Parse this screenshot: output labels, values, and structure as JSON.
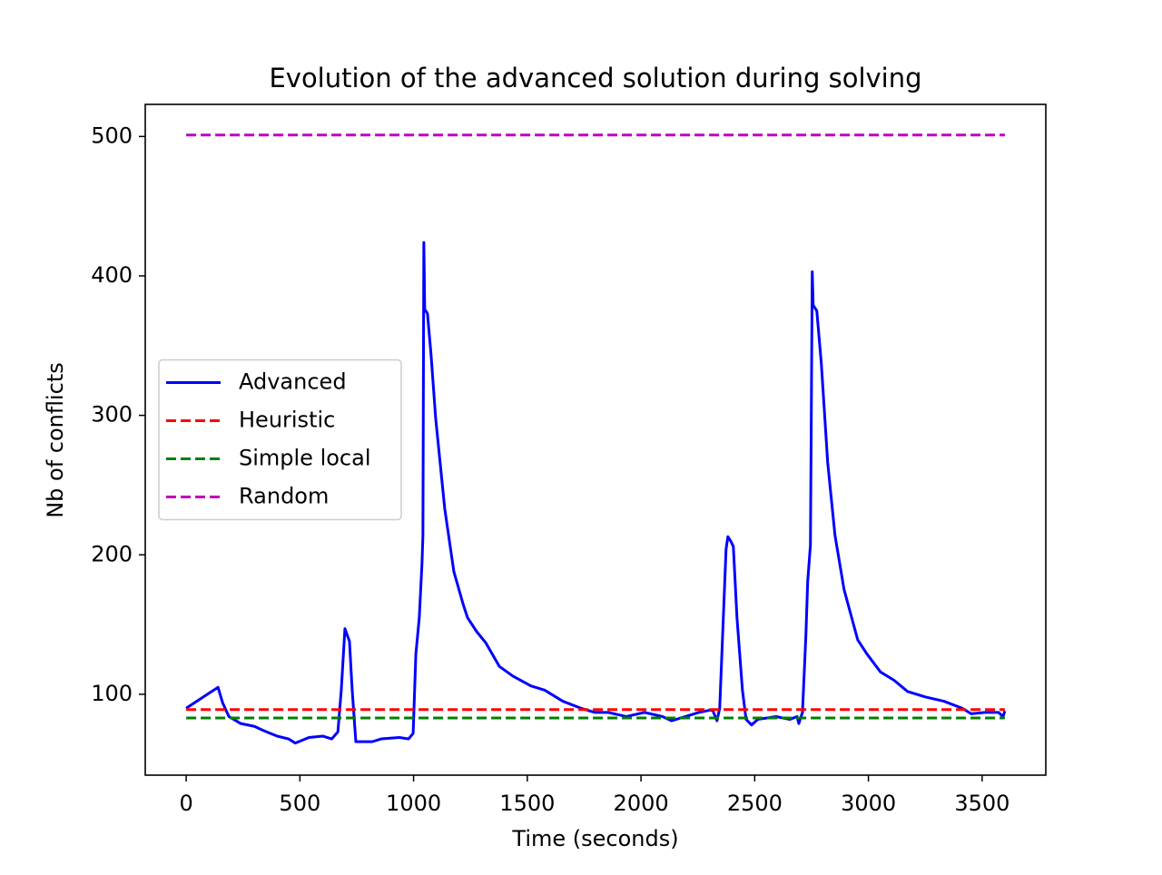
{
  "chart_data": {
    "type": "line",
    "title": "Evolution of the advanced solution during solving",
    "x_label": "Time (seconds)",
    "y_label": "Nb of conflicts",
    "xlim": [
      -180,
      3780
    ],
    "ylim": [
      42,
      523
    ],
    "xticks": [
      0,
      500,
      1000,
      1500,
      2000,
      2500,
      3000,
      3500
    ],
    "yticks": [
      100,
      200,
      300,
      400,
      500
    ],
    "legend": "center left",
    "series": [
      {
        "name": "Advanced",
        "color": "#0000ff",
        "style": "solid",
        "x": [
          0,
          140,
          160,
          188,
          240,
          300,
          340,
          400,
          450,
          480,
          540,
          600,
          640,
          667,
          682,
          698,
          718,
          730,
          746,
          778,
          818,
          858,
          938,
          978,
          998,
          1010,
          1025,
          1037,
          1041,
          1045,
          1049,
          1061,
          1077,
          1097,
          1137,
          1177,
          1217,
          1237,
          1277,
          1317,
          1377,
          1437,
          1516,
          1576,
          1656,
          1736,
          1796,
          1856,
          1935,
          2015,
          2095,
          2135,
          2195,
          2255,
          2314,
          2334,
          2346,
          2362,
          2374,
          2382,
          2394,
          2406,
          2422,
          2446,
          2462,
          2486,
          2514,
          2594,
          2654,
          2686,
          2694,
          2710,
          2725,
          2733,
          2745,
          2753,
          2757,
          2773,
          2793,
          2821,
          2853,
          2893,
          2953,
          2993,
          3053,
          3113,
          3172,
          3252,
          3332,
          3412,
          3452,
          3512,
          3572,
          3592,
          3600
        ],
        "values": [
          90,
          105,
          94,
          84,
          79,
          77,
          74,
          70,
          68,
          65,
          69,
          70,
          68,
          73,
          103,
          147,
          138,
          103,
          66,
          66,
          66,
          68,
          69,
          68,
          72,
          129,
          155,
          194,
          214,
          424,
          376,
          373,
          343,
          298,
          233,
          188,
          165,
          155,
          145,
          137,
          120,
          113,
          106,
          103,
          95,
          90,
          87,
          87,
          84,
          87,
          84,
          81,
          84,
          87,
          89,
          81,
          90,
          155,
          204,
          213,
          210,
          206,
          155,
          103,
          82,
          78,
          82,
          84,
          82,
          84,
          79,
          87,
          142,
          181,
          207,
          403,
          379,
          375,
          337,
          266,
          214,
          175,
          139,
          129,
          116,
          110,
          102,
          98,
          95,
          90,
          86,
          87,
          87,
          84,
          88
        ]
      },
      {
        "name": "Heuristic",
        "color": "#ff0000",
        "style": "dashed",
        "x": [
          0,
          3600
        ],
        "values": [
          89,
          89
        ]
      },
      {
        "name": "Simple local",
        "color": "#008000",
        "style": "dashed",
        "x": [
          0,
          3600
        ],
        "values": [
          83,
          83
        ]
      },
      {
        "name": "Random",
        "color": "#bf00bf",
        "style": "dashed",
        "x": [
          0,
          3600
        ],
        "values": [
          501,
          501
        ]
      }
    ]
  }
}
